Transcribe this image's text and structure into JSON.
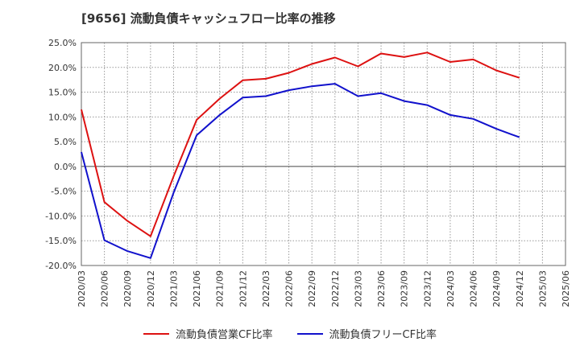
{
  "title": "[9656]  流動負債キャッシュフロー比率の推移",
  "chart_data": {
    "type": "line",
    "x": [
      "2020/03",
      "2020/06",
      "2020/09",
      "2020/12",
      "2021/03",
      "2021/06",
      "2021/09",
      "2021/12",
      "2022/03",
      "2022/06",
      "2022/09",
      "2022/12",
      "2023/03",
      "2023/06",
      "2023/09",
      "2023/12",
      "2024/03",
      "2024/06",
      "2024/09",
      "2024/12",
      "2025/03",
      "2025/06"
    ],
    "yticks": [
      "25.0%",
      "20.0%",
      "15.0%",
      "10.0%",
      "5.0%",
      "0.0%",
      "-5.0%",
      "-10.0%",
      "-15.0%",
      "-20.0%"
    ],
    "ylim": [
      -20,
      25
    ],
    "grid": true,
    "legend_position": "bottom",
    "series": [
      {
        "name": "流動負債営業CF比率",
        "color": "#dd1111",
        "values": [
          11.5,
          -7.2,
          -11.0,
          -14.1,
          -2.0,
          9.4,
          13.7,
          17.4,
          17.7,
          18.9,
          20.7,
          22.0,
          20.2,
          22.8,
          22.1,
          23.0,
          21.1,
          21.6,
          19.4,
          17.9,
          null,
          null
        ]
      },
      {
        "name": "流動負債フリーCF比率",
        "color": "#1111cc",
        "values": [
          2.9,
          -14.9,
          -17.1,
          -18.5,
          -5.3,
          6.3,
          10.4,
          13.9,
          14.2,
          15.4,
          16.2,
          16.7,
          14.2,
          14.8,
          13.2,
          12.4,
          10.4,
          9.6,
          7.6,
          5.9,
          null,
          null
        ]
      }
    ]
  }
}
